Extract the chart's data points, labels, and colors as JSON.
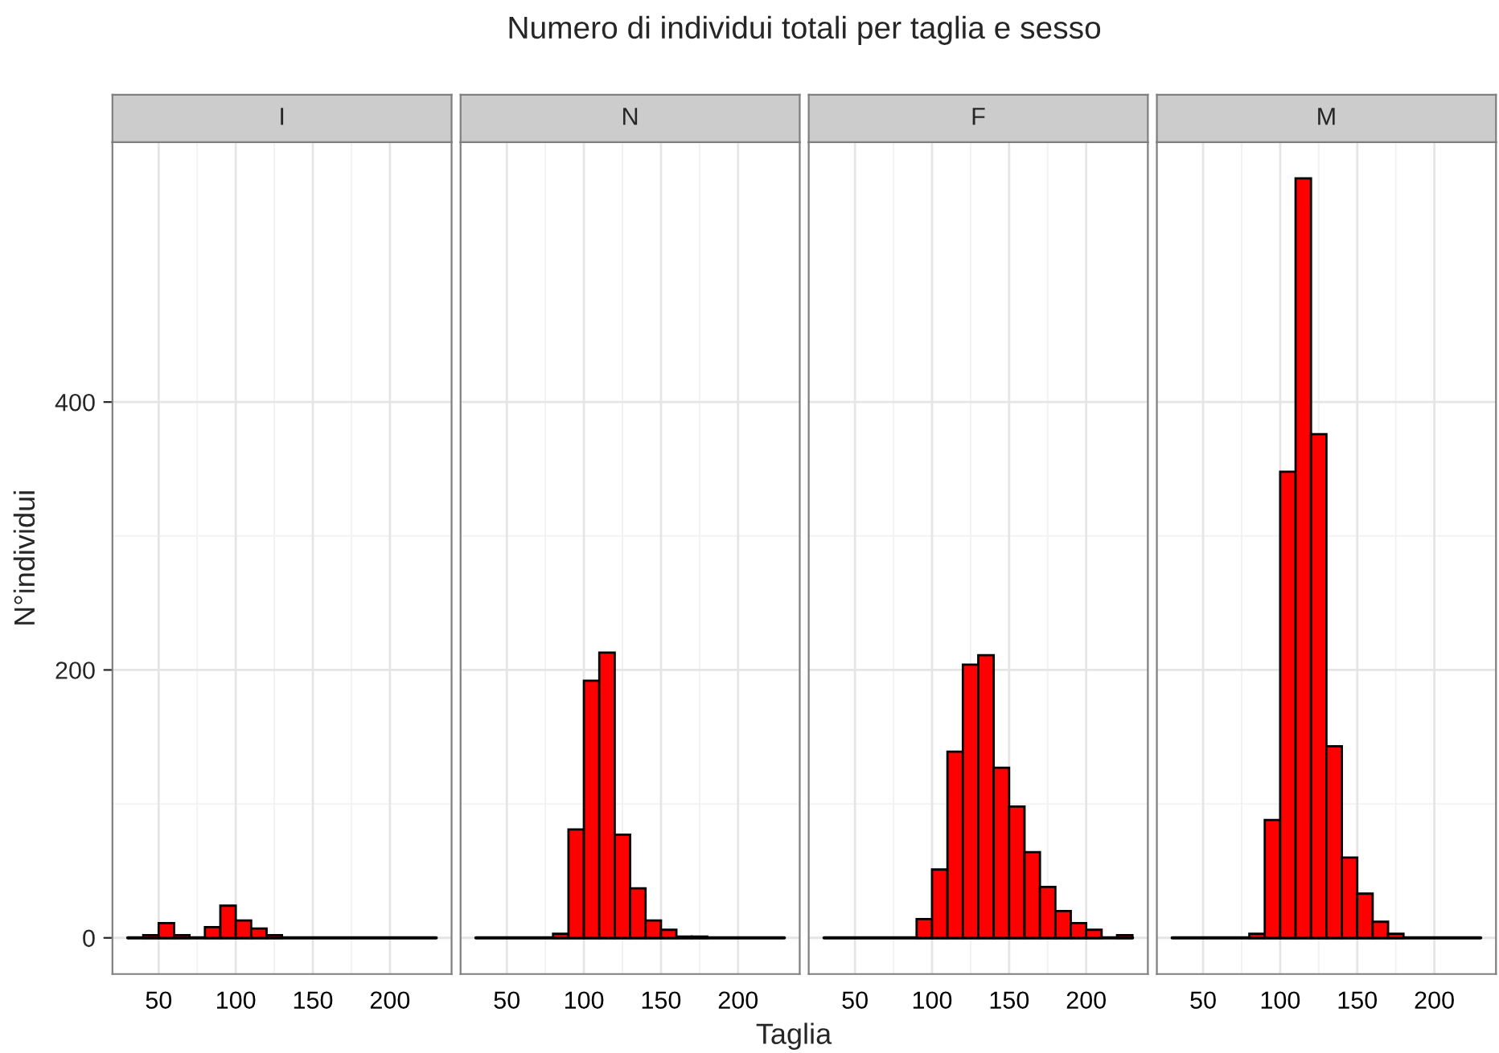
{
  "chart_data": [
    {
      "type": "histogram",
      "title": "I",
      "annotations": [
        "Numero di individui totali per taglia e sesso"
      ],
      "ylabel": "N°individui",
      "color": "#ff0000",
      "bins": [
        30,
        40,
        50,
        60,
        70,
        80,
        90,
        100,
        110,
        120,
        130,
        140,
        150,
        160,
        170,
        180,
        190,
        200,
        210,
        220,
        230
      ],
      "values": [
        0,
        2,
        11,
        2,
        0,
        8,
        24,
        13,
        7,
        2,
        0,
        0,
        0,
        0,
        0,
        0,
        0,
        0,
        0,
        0
      ],
      "xlim": [
        20,
        240
      ],
      "xticks": [
        50,
        100,
        150,
        200
      ],
      "ylim": [
        -27,
        594
      ],
      "yticks": [
        0,
        200,
        400
      ],
      "grid": true
    },
    {
      "type": "histogram",
      "title": "N",
      "xlabel": "Taglia",
      "color": "#ff0000",
      "bins": [
        30,
        40,
        50,
        60,
        70,
        80,
        90,
        100,
        110,
        120,
        130,
        140,
        150,
        160,
        170,
        180,
        190,
        200,
        210,
        220,
        230
      ],
      "values": [
        0,
        0,
        0,
        0,
        0,
        3,
        81,
        192,
        213,
        77,
        37,
        13,
        6,
        1,
        1,
        0,
        0,
        0,
        0,
        0
      ],
      "xlim": [
        20,
        240
      ],
      "xticks": [
        50,
        100,
        150,
        200
      ],
      "ylim": [
        -27,
        594
      ],
      "yticks": [
        0,
        200,
        400
      ],
      "grid": true,
      "tick_labels": "x"
    },
    {
      "type": "histogram",
      "title": "F",
      "color": "#ff0000",
      "bins": [
        30,
        40,
        50,
        60,
        70,
        80,
        90,
        100,
        110,
        120,
        130,
        140,
        150,
        160,
        170,
        180,
        190,
        200,
        210,
        220,
        230
      ],
      "values": [
        0,
        0,
        0,
        0,
        0,
        0,
        14,
        51,
        139,
        204,
        211,
        127,
        98,
        64,
        38,
        20,
        11,
        6,
        0,
        2
      ],
      "xlim": [
        20,
        240
      ],
      "xticks": [
        50,
        100,
        150,
        200
      ],
      "ylim": [
        -27,
        594
      ],
      "yticks": [
        0,
        200,
        400
      ],
      "grid": true,
      "tick_labels": "x"
    },
    {
      "type": "histogram",
      "title": "M",
      "color": "#ff0000",
      "bins": [
        30,
        40,
        50,
        60,
        70,
        80,
        90,
        100,
        110,
        120,
        130,
        140,
        150,
        160,
        170,
        180,
        190,
        200,
        210,
        220,
        230
      ],
      "values": [
        0,
        0,
        0,
        0,
        0,
        3,
        88,
        348,
        567,
        376,
        143,
        60,
        33,
        12,
        3,
        0,
        0,
        0,
        0,
        0
      ],
      "xlim": [
        20,
        240
      ],
      "xticks": [
        50,
        100,
        150,
        200
      ],
      "ylim": [
        -27,
        594
      ],
      "yticks": [
        0,
        200,
        400
      ],
      "grid": true,
      "tick_labels": "x"
    }
  ]
}
